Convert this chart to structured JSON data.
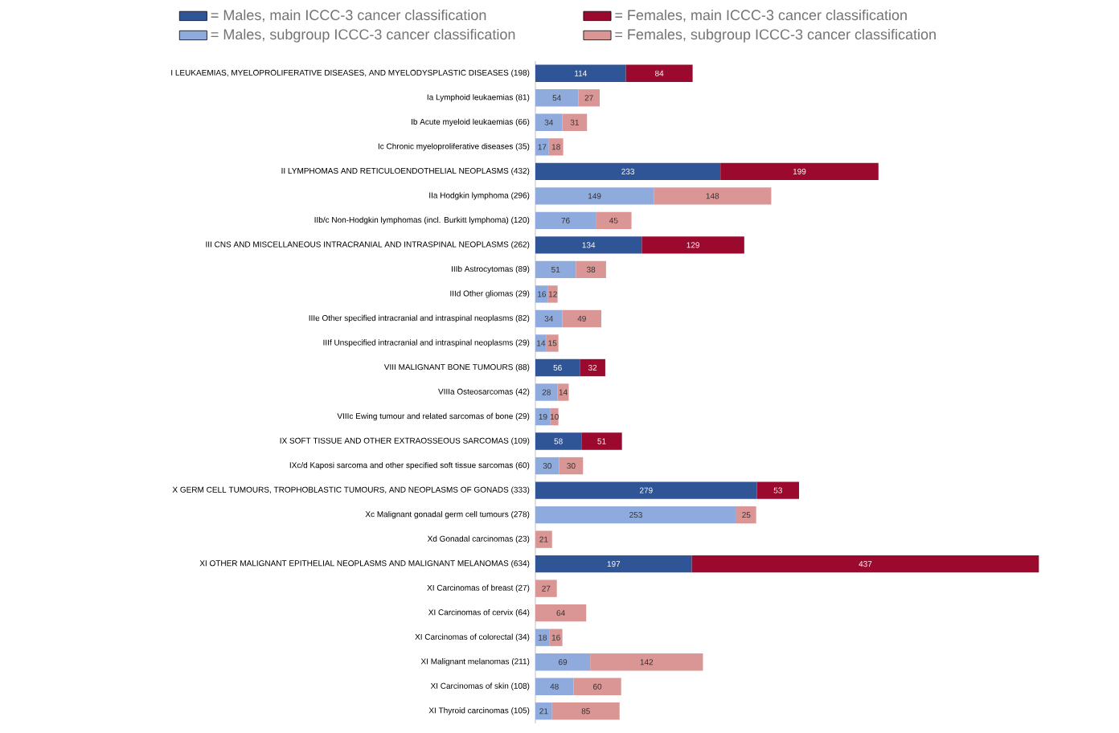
{
  "chart_data": {
    "type": "bar",
    "orientation": "horizontal",
    "stacked": true,
    "data_labels": true,
    "legend": "top",
    "categories": [
      "I LEUKAEMIAS, MYELOPROLIFERATIVE DISEASES, AND MYELODYSPLASTIC DISEASES (198)",
      "Ia Lymphoid leukaemias (81)",
      "Ib Acute myeloid leukaemias (66)",
      "Ic Chronic myeloproliferative diseases (35)",
      "II LYMPHOMAS AND RETICULOENDOTHELIAL NEOPLASMS (432)",
      "IIa Hodgkin lymphoma (296)",
      "IIb/c Non-Hodgkin lymphomas (incl. Burkitt lymphoma) (120)",
      "III CNS AND MISCELLANEOUS INTRACRANIAL AND INTRASPINAL NEOPLASMS (262)",
      "IIIb Astrocytomas (89)",
      "IIId Other gliomas (29)",
      "IIIe Other specified intracranial and intraspinal neoplasms (82)",
      "IIIf Unspecified intracranial and intraspinal neoplasms (29)",
      "VIII MALIGNANT BONE TUMOURS (88)",
      "VIIIa Osteosarcomas (42)",
      "VIIIc Ewing tumour and related sarcomas of bone (29)",
      "IX SOFT TISSUE AND OTHER EXTRAOSSEOUS SARCOMAS (109)",
      "IXc/d Kaposi sarcoma and other specified soft tissue sarcomas (60)",
      "X GERM CELL TUMOURS, TROPHOBLASTIC TUMOURS, AND NEOPLASMS OF GONADS (333)",
      "Xc Malignant gonadal germ cell tumours (278)",
      "Xd Gonadal carcinomas (23)",
      "XI OTHER MALIGNANT EPITHELIAL NEOPLASMS AND MALIGNANT MELANOMAS (634)",
      "XI Carcinomas of breast (27)",
      "XI Carcinomas of cervix (64)",
      "XI Carcinomas of colorectal (34)",
      "XI Malignant melanomas (211)",
      "XI Carcinomas of skin (108)",
      "XI Thyroid carcinomas (105)"
    ],
    "series": [
      {
        "name": "= Males, main ICCC-3 cancer classification",
        "color": "#2f5597",
        "values": [
          114,
          null,
          null,
          null,
          233,
          null,
          null,
          134,
          null,
          null,
          null,
          null,
          56,
          null,
          null,
          58,
          null,
          279,
          null,
          null,
          197,
          null,
          null,
          null,
          null,
          null,
          null
        ]
      },
      {
        "name": "= Females, main ICCC-3 cancer classification",
        "color": "#9b0a2e",
        "values": [
          84,
          null,
          null,
          null,
          199,
          null,
          null,
          129,
          null,
          null,
          null,
          null,
          32,
          null,
          null,
          51,
          null,
          53,
          null,
          null,
          437,
          null,
          null,
          null,
          null,
          null,
          null
        ]
      },
      {
        "name": "= Males, subgroup ICCC-3 cancer classification",
        "color": "#8faadc",
        "values": [
          null,
          54,
          34,
          17,
          null,
          149,
          76,
          null,
          51,
          16,
          34,
          14,
          null,
          28,
          19,
          null,
          30,
          null,
          253,
          null,
          null,
          null,
          null,
          18,
          69,
          48,
          21
        ]
      },
      {
        "name": "= Females, subgroup ICCC-3 cancer classification",
        "color": "#d99694",
        "values": [
          null,
          27,
          31,
          18,
          null,
          148,
          45,
          null,
          38,
          12,
          49,
          15,
          null,
          14,
          10,
          null,
          30,
          null,
          25,
          21,
          null,
          27,
          64,
          16,
          142,
          60,
          85
        ]
      }
    ]
  }
}
